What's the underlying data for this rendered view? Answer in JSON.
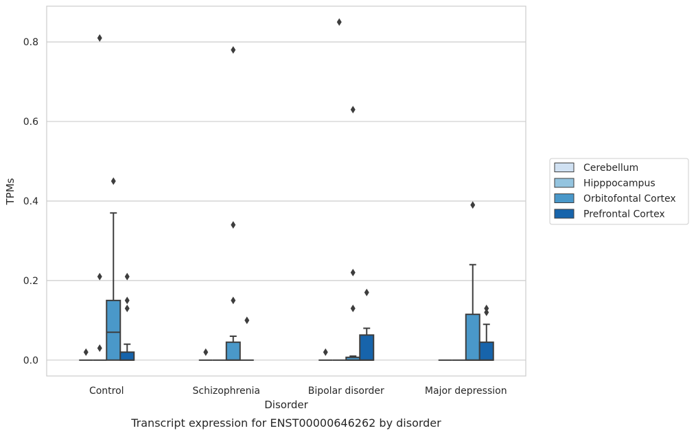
{
  "chart_data": {
    "type": "boxplot",
    "title": "",
    "caption": "Transcript expression for ENST00000646262 by disorder",
    "xlabel": "Disorder",
    "ylabel": "TPMs",
    "ylim": [
      -0.04,
      0.89
    ],
    "yticks": [
      0.0,
      0.2,
      0.4,
      0.6,
      0.8
    ],
    "ytick_labels": [
      "0.0",
      "0.2",
      "0.4",
      "0.6",
      "0.8"
    ],
    "grid": "horizontal",
    "legend_position": "right",
    "categories": [
      "Control",
      "Schizophrenia",
      "Bipolar disorder",
      "Major depression"
    ],
    "series": [
      {
        "name": "Cerebellum",
        "color": "#d0e1f2",
        "boxes": [
          {
            "q1": 0,
            "median": 0,
            "q3": 0,
            "whisker_low": 0,
            "whisker_high": 0,
            "outliers": [
              0.02
            ]
          },
          {
            "q1": 0,
            "median": 0,
            "q3": 0,
            "whisker_low": 0,
            "whisker_high": 0,
            "outliers": [
              0.02
            ]
          },
          {
            "q1": 0,
            "median": 0,
            "q3": 0,
            "whisker_low": 0,
            "whisker_high": 0,
            "outliers": [
              0.02
            ]
          },
          {
            "q1": 0,
            "median": 0,
            "q3": 0,
            "whisker_low": 0,
            "whisker_high": 0,
            "outliers": []
          }
        ]
      },
      {
        "name": "Hipppocampus",
        "color": "#94c4df",
        "boxes": [
          {
            "q1": 0,
            "median": 0,
            "q3": 0,
            "whisker_low": 0,
            "whisker_high": 0,
            "outliers": [
              0.81,
              0.21,
              0.03
            ]
          },
          {
            "q1": 0,
            "median": 0,
            "q3": 0,
            "whisker_low": 0,
            "whisker_high": 0,
            "outliers": []
          },
          {
            "q1": 0,
            "median": 0,
            "q3": 0,
            "whisker_low": 0,
            "whisker_high": 0,
            "outliers": [
              0.85
            ]
          },
          {
            "q1": 0,
            "median": 0,
            "q3": 0,
            "whisker_low": 0,
            "whisker_high": 0,
            "outliers": []
          }
        ]
      },
      {
        "name": "Orbitofontal Cortex",
        "color": "#4a98c9",
        "boxes": [
          {
            "q1": 0,
            "median": 0.07,
            "q3": 0.15,
            "whisker_low": 0,
            "whisker_high": 0.37,
            "outliers": [
              0.45
            ]
          },
          {
            "q1": 0,
            "median": 0,
            "q3": 0.045,
            "whisker_low": 0,
            "whisker_high": 0.06,
            "outliers": [
              0.78,
              0.34,
              0.15
            ]
          },
          {
            "q1": 0,
            "median": 0,
            "q3": 0.007,
            "whisker_low": 0,
            "whisker_high": 0.01,
            "outliers": [
              0.63,
              0.22,
              0.13
            ]
          },
          {
            "q1": 0,
            "median": 0,
            "q3": 0.115,
            "whisker_low": 0,
            "whisker_high": 0.24,
            "outliers": [
              0.39
            ]
          }
        ]
      },
      {
        "name": "Prefrontal Cortex",
        "color": "#1764ab",
        "boxes": [
          {
            "q1": 0,
            "median": 0,
            "q3": 0.02,
            "whisker_low": 0,
            "whisker_high": 0.04,
            "outliers": [
              0.21,
              0.15,
              0.13
            ]
          },
          {
            "q1": 0,
            "median": 0,
            "q3": 0,
            "whisker_low": 0,
            "whisker_high": 0,
            "outliers": [
              0.1
            ]
          },
          {
            "q1": 0,
            "median": 0,
            "q3": 0.063,
            "whisker_low": 0,
            "whisker_high": 0.08,
            "outliers": [
              0.17
            ]
          },
          {
            "q1": 0,
            "median": 0,
            "q3": 0.045,
            "whisker_low": 0,
            "whisker_high": 0.09,
            "outliers": [
              0.13,
              0.12
            ]
          }
        ]
      }
    ]
  }
}
